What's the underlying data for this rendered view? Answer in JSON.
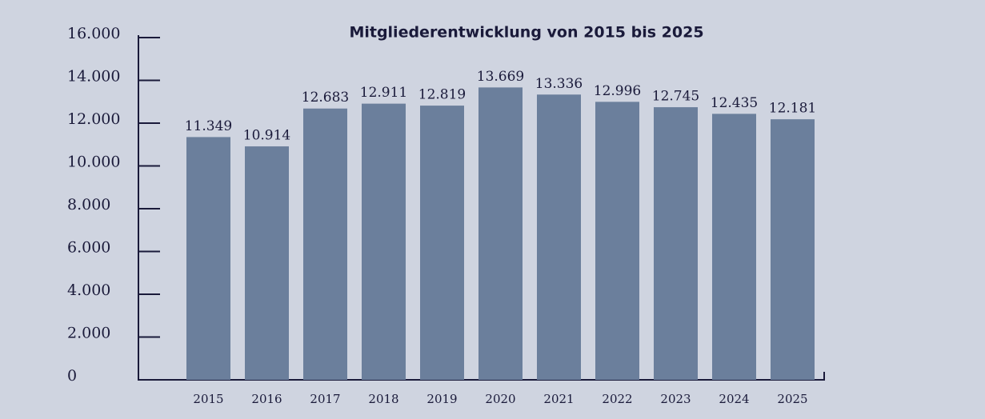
{
  "chart_data": {
    "type": "bar",
    "title": "Mitgliederentwicklung von 2015 bis 2025",
    "categories": [
      "2015",
      "2016",
      "2017",
      "2018",
      "2019",
      "2020",
      "2021",
      "2022",
      "2023",
      "2024",
      "2025"
    ],
    "values": [
      11349,
      10914,
      12683,
      12911,
      12819,
      13669,
      13336,
      12996,
      12745,
      12435,
      12181
    ],
    "value_labels": [
      "11.349",
      "10.914",
      "12.683",
      "12.911",
      "12.819",
      "13.669",
      "13.336",
      "12.996",
      "12.745",
      "12.435",
      "12.181"
    ],
    "color": "#6b7f9c",
    "ylim": [
      0,
      16000
    ],
    "yticks": [
      0,
      {
        "value": 2000,
        "label": "2.000"
      },
      {
        "value": 4000,
        "label": "4.000"
      },
      {
        "value": 6000,
        "label": "6.000"
      },
      {
        "value": 8000,
        "label": "8.000"
      },
      {
        "value": 10000,
        "label": "10.000"
      },
      {
        "value": 12000,
        "label": "12.000"
      },
      {
        "value": 14000,
        "label": "14.000"
      },
      {
        "value": 16000,
        "label": "16.000"
      }
    ]
  }
}
